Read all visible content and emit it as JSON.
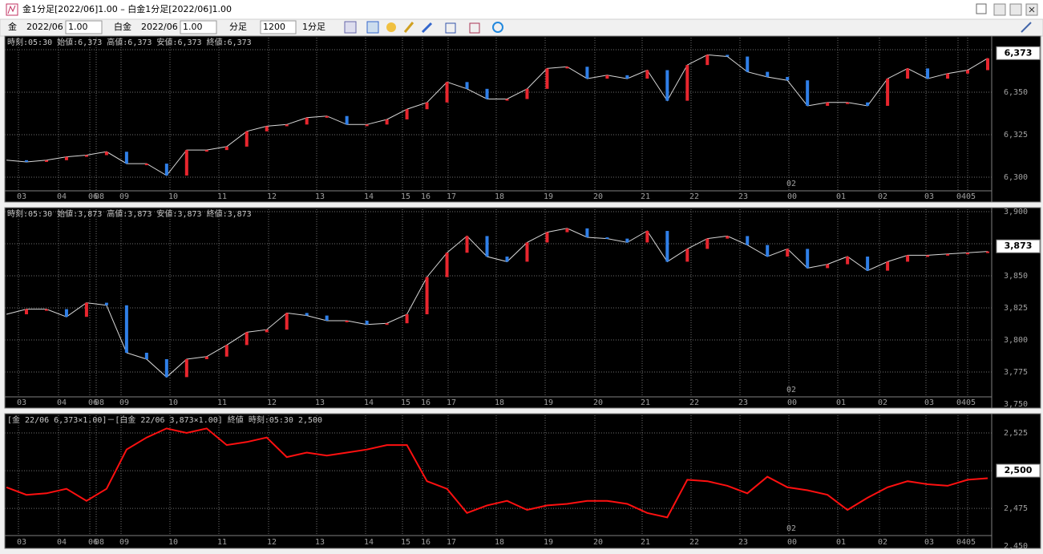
{
  "window": {
    "title": "金1分足[2022/06]1.00 – 白金1分足[2022/06]1.00"
  },
  "toolbar": {
    "symbol1": "金",
    "month1": "2022/06",
    "mult1": "1.00",
    "symbol2": "白金",
    "month2": "2022/06",
    "mult2": "1.00",
    "unit": "分足",
    "count": "1200",
    "period": "1分足"
  },
  "chart_data": [
    {
      "type": "candle-line",
      "info": "時刻:05:30 始値:6,373 高値:6,373 安値:6,373 終値:6,373",
      "color": "#d8d8d8",
      "up_color": "#e8262e",
      "down_color": "#2f7fe8",
      "values": [
        6310,
        6309,
        6310,
        6312,
        6313,
        6315,
        6308,
        6308,
        6301,
        6316,
        6316,
        6318,
        6327,
        6330,
        6331,
        6335,
        6336,
        6331,
        6331,
        6334,
        6340,
        6344,
        6356,
        6352,
        6346,
        6346,
        6352,
        6364,
        6365,
        6358,
        6360,
        6358,
        6363,
        6345,
        6366,
        6372,
        6371,
        6362,
        6359,
        6357,
        6342,
        6344,
        6344,
        6342,
        6358,
        6364,
        6358,
        6361,
        6363,
        6370
      ],
      "ylim": [
        6292,
        6382.1
      ],
      "yticks": [
        {
          "value": 6300,
          "label": "6,300"
        },
        {
          "value": 6325,
          "label": "6,325"
        },
        {
          "value": 6350,
          "label": "6,350"
        },
        {
          "value": 6375,
          "label": "6,375"
        }
      ],
      "last": {
        "value": 6373,
        "label": "6,373"
      },
      "xlabels": [
        "03",
        "04",
        "06",
        "08",
        "09",
        "10",
        "11",
        "12",
        "13",
        "14",
        "15",
        "16",
        "17",
        "18",
        "19",
        "20",
        "21",
        "22",
        "23",
        "00",
        "01",
        "02",
        "03",
        "04",
        "05"
      ],
      "marker_label": "02",
      "grid": true
    },
    {
      "type": "candle-line",
      "info": "時刻:05:30 始値:3,873 高値:3,873 安値:3,873 終値:3,873",
      "color": "#d8d8d8",
      "up_color": "#e8262e",
      "down_color": "#2f7fe8",
      "values": [
        3820,
        3824,
        3824,
        3818,
        3829,
        3827,
        3790,
        3785,
        3771,
        3785,
        3787,
        3796,
        3806,
        3808,
        3821,
        3819,
        3815,
        3815,
        3812,
        3813,
        3820,
        3849,
        3868,
        3881,
        3865,
        3861,
        3876,
        3884,
        3887,
        3880,
        3879,
        3876,
        3885,
        3861,
        3871,
        3879,
        3881,
        3874,
        3865,
        3871,
        3856,
        3859,
        3865,
        3854,
        3861,
        3866,
        3866,
        3867,
        3868,
        3869
      ],
      "ylim": [
        3755.6,
        3901.9
      ],
      "yticks": [
        {
          "value": 3750,
          "label": "3,750"
        },
        {
          "value": 3775,
          "label": "3,775"
        },
        {
          "value": 3800,
          "label": "3,800"
        },
        {
          "value": 3825,
          "label": "3,825"
        },
        {
          "value": 3850,
          "label": "3,850"
        },
        {
          "value": 3875,
          "label": "3,875"
        },
        {
          "value": 3900,
          "label": "3,900"
        }
      ],
      "last": {
        "value": 3873,
        "label": "3,873"
      },
      "xlabels": [
        "03",
        "04",
        "06",
        "08",
        "09",
        "10",
        "11",
        "12",
        "13",
        "14",
        "15",
        "16",
        "17",
        "18",
        "19",
        "20",
        "21",
        "22",
        "23",
        "00",
        "01",
        "02",
        "03",
        "04",
        "05"
      ],
      "marker_label": "02",
      "grid": true
    },
    {
      "type": "line",
      "info": "[金 22/06 6,373×1.00]－[白金 22/06 3,873×1.00] 終値 時刻:05:30 2,500",
      "color": "#ff1010",
      "values": [
        2489,
        2484,
        2485,
        2488,
        2480,
        2488,
        2514,
        2522,
        2528,
        2525,
        2528,
        2517,
        2519,
        2522,
        2509,
        2512,
        2510,
        2512,
        2514,
        2517,
        2517,
        2493,
        2488,
        2472,
        2477,
        2480,
        2474,
        2477,
        2478,
        2480,
        2480,
        2478,
        2472,
        2469,
        2494,
        2493,
        2490,
        2485,
        2496,
        2489,
        2487,
        2484,
        2474,
        2482,
        2489,
        2493,
        2491,
        2490,
        2494,
        2495
      ],
      "ylim": [
        2457,
        2536.7
      ],
      "yticks": [
        {
          "value": 2450,
          "label": "2,450"
        },
        {
          "value": 2475,
          "label": "2,475"
        },
        {
          "value": 2500,
          "label": "2,500"
        },
        {
          "value": 2525,
          "label": "2,525"
        }
      ],
      "last": {
        "value": 2500,
        "label": "2,500"
      },
      "xlabels": [
        "03",
        "04",
        "06",
        "08",
        "09",
        "10",
        "11",
        "12",
        "13",
        "14",
        "15",
        "16",
        "17",
        "18",
        "19",
        "20",
        "21",
        "22",
        "23",
        "00",
        "01",
        "02",
        "03",
        "04",
        "05"
      ],
      "marker_label": "02",
      "grid": true
    }
  ]
}
